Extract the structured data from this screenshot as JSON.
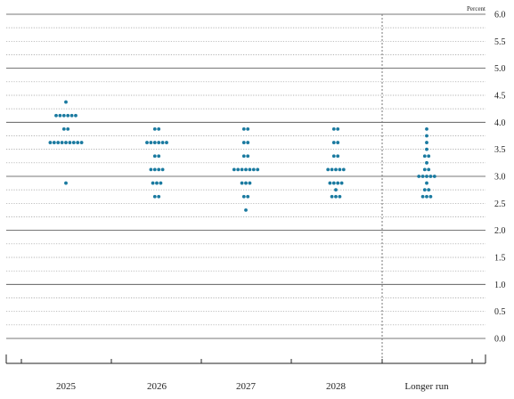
{
  "chart_data": {
    "type": "scatter",
    "y_unit_label": "Percent",
    "categories": [
      "2025",
      "2026",
      "2027",
      "2028",
      "Longer run"
    ],
    "ylim": [
      -0.25,
      6.0
    ],
    "y_ticks": [
      0.0,
      0.25,
      0.5,
      0.75,
      1.0,
      1.25,
      1.5,
      1.75,
      2.0,
      2.25,
      2.5,
      2.75,
      3.0,
      3.25,
      3.5,
      3.75,
      4.0,
      4.25,
      4.5,
      4.75,
      5.0,
      5.25,
      5.5,
      5.75,
      6.0
    ],
    "y_tick_labels": [
      "0.0",
      "",
      "0.5",
      "",
      "1.0",
      "",
      "1.5",
      "",
      "2.0",
      "",
      "2.5",
      "",
      "3.0",
      "",
      "3.5",
      "",
      "4.0",
      "",
      "4.5",
      "",
      "5.0",
      "",
      "5.5",
      "",
      "6.0"
    ],
    "grid": "dotted at quarter points, solid at whole points",
    "separator_before": "Longer run",
    "dot_color": "#1a7aa0",
    "series": [
      {
        "category": "2025",
        "points": [
          {
            "y": 4.375,
            "count": 1
          },
          {
            "y": 4.125,
            "count": 6
          },
          {
            "y": 3.875,
            "count": 2
          },
          {
            "y": 3.625,
            "count": 9
          },
          {
            "y": 2.875,
            "count": 1
          }
        ]
      },
      {
        "category": "2026",
        "points": [
          {
            "y": 3.875,
            "count": 2
          },
          {
            "y": 3.625,
            "count": 6
          },
          {
            "y": 3.375,
            "count": 2
          },
          {
            "y": 3.125,
            "count": 4
          },
          {
            "y": 2.875,
            "count": 3
          },
          {
            "y": 2.625,
            "count": 2
          }
        ]
      },
      {
        "category": "2027",
        "points": [
          {
            "y": 3.875,
            "count": 2
          },
          {
            "y": 3.625,
            "count": 2
          },
          {
            "y": 3.375,
            "count": 2
          },
          {
            "y": 3.125,
            "count": 7
          },
          {
            "y": 2.875,
            "count": 3
          },
          {
            "y": 2.625,
            "count": 2
          },
          {
            "y": 2.375,
            "count": 1
          }
        ]
      },
      {
        "category": "2028",
        "points": [
          {
            "y": 3.875,
            "count": 2
          },
          {
            "y": 3.625,
            "count": 2
          },
          {
            "y": 3.375,
            "count": 2
          },
          {
            "y": 3.125,
            "count": 5
          },
          {
            "y": 2.875,
            "count": 4
          },
          {
            "y": 2.75,
            "count": 1
          },
          {
            "y": 2.625,
            "count": 3
          }
        ]
      },
      {
        "category": "Longer run",
        "points": [
          {
            "y": 3.875,
            "count": 1
          },
          {
            "y": 3.75,
            "count": 1
          },
          {
            "y": 3.625,
            "count": 1
          },
          {
            "y": 3.5,
            "count": 1
          },
          {
            "y": 3.375,
            "count": 2
          },
          {
            "y": 3.25,
            "count": 1
          },
          {
            "y": 3.125,
            "count": 2
          },
          {
            "y": 3.0,
            "count": 5
          },
          {
            "y": 2.875,
            "count": 1
          },
          {
            "y": 2.75,
            "count": 2
          },
          {
            "y": 2.625,
            "count": 3
          }
        ]
      }
    ]
  }
}
